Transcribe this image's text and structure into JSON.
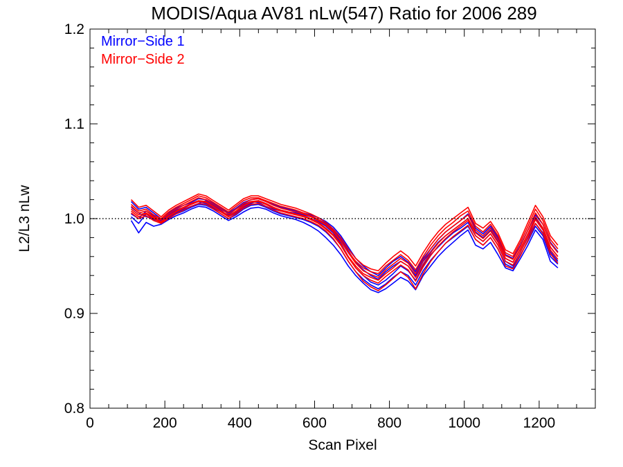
{
  "chart_data": {
    "type": "line",
    "title": "MODIS/Aqua AV81 nLw(547) Ratio for 2006 289",
    "xlabel": "Scan Pixel",
    "ylabel": "L2/L3 nLw",
    "xlim": [
      0,
      1350
    ],
    "ylim": [
      0.8,
      1.2
    ],
    "x_ticks": [
      0,
      200,
      400,
      600,
      800,
      1000,
      1200
    ],
    "x_tick_labels": [
      "0",
      "200",
      "400",
      "600",
      "800",
      "1000",
      "1200"
    ],
    "y_ticks": [
      0.8,
      0.9,
      1.0,
      1.1,
      1.2
    ],
    "y_tick_labels": [
      "0.8",
      "0.9",
      "1.0",
      "1.1",
      "1.2"
    ],
    "reference_line": {
      "y": 1.0,
      "style": "dotted",
      "color": "#000000"
    },
    "legend_position": "top-left",
    "grid": false,
    "x": [
      110,
      130,
      150,
      170,
      190,
      210,
      230,
      250,
      270,
      290,
      310,
      330,
      350,
      370,
      390,
      410,
      430,
      450,
      470,
      490,
      510,
      530,
      550,
      570,
      590,
      610,
      630,
      650,
      670,
      690,
      710,
      730,
      750,
      770,
      790,
      810,
      830,
      850,
      870,
      890,
      910,
      930,
      950,
      970,
      990,
      1010,
      1030,
      1050,
      1070,
      1090,
      1110,
      1130,
      1150,
      1170,
      1190,
      1210,
      1230,
      1250
    ],
    "series_groups": [
      {
        "name": "Mirror−Side 1",
        "color": "#0000ff",
        "series": [
          {
            "values": [
              1.005,
              1.0,
              1.008,
              1.003,
              0.998,
              1.004,
              1.009,
              1.012,
              1.015,
              1.018,
              1.016,
              1.011,
              1.007,
              1.004,
              1.01,
              1.015,
              1.018,
              1.017,
              1.013,
              1.01,
              1.008,
              1.006,
              1.004,
              1.003,
              1.0,
              0.997,
              0.992,
              0.985,
              0.974,
              0.96,
              0.948,
              0.94,
              0.933,
              0.93,
              0.935,
              0.942,
              0.95,
              0.945,
              0.935,
              0.95,
              0.962,
              0.97,
              0.978,
              0.985,
              0.99,
              0.996,
              0.982,
              0.976,
              0.984,
              0.972,
              0.955,
              0.95,
              0.965,
              0.98,
              0.995,
              0.985,
              0.965,
              0.955
            ]
          },
          {
            "values": [
              1.012,
              1.006,
              1.002,
              1.0,
              0.996,
              1.002,
              1.006,
              1.01,
              1.013,
              1.016,
              1.019,
              1.014,
              1.009,
              1.002,
              1.006,
              1.012,
              1.016,
              1.019,
              1.016,
              1.012,
              1.009,
              1.007,
              1.006,
              1.004,
              1.002,
              0.999,
              0.995,
              0.988,
              0.979,
              0.966,
              0.954,
              0.946,
              0.94,
              0.936,
              0.944,
              0.95,
              0.955,
              0.95,
              0.94,
              0.955,
              0.965,
              0.975,
              0.982,
              0.988,
              0.994,
              1.0,
              0.986,
              0.98,
              0.988,
              0.976,
              0.958,
              0.954,
              0.968,
              0.984,
              1.0,
              0.99,
              0.97,
              0.96
            ]
          },
          {
            "values": [
              0.998,
              0.985,
              0.996,
              0.992,
              0.994,
              0.999,
              1.003,
              1.006,
              1.01,
              1.013,
              1.012,
              1.008,
              1.003,
              0.998,
              1.002,
              1.007,
              1.011,
              1.012,
              1.01,
              1.006,
              1.003,
              1.001,
              0.999,
              0.996,
              0.992,
              0.987,
              0.98,
              0.972,
              0.962,
              0.95,
              0.94,
              0.932,
              0.925,
              0.922,
              0.926,
              0.932,
              0.938,
              0.934,
              0.925,
              0.94,
              0.95,
              0.96,
              0.968,
              0.975,
              0.982,
              0.988,
              0.972,
              0.968,
              0.975,
              0.962,
              0.948,
              0.945,
              0.958,
              0.972,
              0.988,
              0.978,
              0.955,
              0.948
            ]
          },
          {
            "values": [
              1.018,
              1.01,
              1.012,
              1.006,
              1.0,
              1.006,
              1.011,
              1.014,
              1.017,
              1.021,
              1.02,
              1.016,
              1.011,
              1.006,
              1.011,
              1.017,
              1.02,
              1.021,
              1.018,
              1.015,
              1.012,
              1.01,
              1.008,
              1.006,
              1.004,
              1.001,
              0.997,
              0.991,
              0.982,
              0.97,
              0.958,
              0.95,
              0.944,
              0.94,
              0.948,
              0.955,
              0.96,
              0.954,
              0.944,
              0.958,
              0.968,
              0.978,
              0.986,
              0.992,
              0.998,
              1.005,
              0.99,
              0.984,
              0.992,
              0.98,
              0.962,
              0.958,
              0.972,
              0.988,
              1.004,
              0.994,
              0.975,
              0.965
            ]
          },
          {
            "values": [
              1.002,
              0.995,
              1.005,
              0.999,
              0.997,
              1.001,
              1.005,
              1.008,
              1.012,
              1.015,
              1.014,
              1.01,
              1.005,
              1.0,
              1.004,
              1.01,
              1.014,
              1.015,
              1.012,
              1.008,
              1.005,
              1.003,
              1.001,
              0.999,
              0.996,
              0.992,
              0.986,
              0.978,
              0.968,
              0.955,
              0.944,
              0.936,
              0.93,
              0.926,
              0.931,
              0.938,
              0.944,
              0.94,
              0.93,
              0.945,
              0.956,
              0.965,
              0.974,
              0.98,
              0.986,
              0.992,
              0.978,
              0.972,
              0.98,
              0.968,
              0.952,
              0.948,
              0.962,
              0.976,
              0.992,
              0.982,
              0.96,
              0.952
            ]
          }
        ]
      },
      {
        "name": "Mirror−Side 2",
        "color": "#ff0000",
        "series": [
          {
            "values": [
              1.015,
              1.008,
              1.01,
              1.004,
              1.0,
              1.007,
              1.012,
              1.016,
              1.02,
              1.024,
              1.022,
              1.017,
              1.012,
              1.007,
              1.013,
              1.019,
              1.022,
              1.022,
              1.019,
              1.016,
              1.013,
              1.011,
              1.009,
              1.006,
              1.003,
              0.999,
              0.994,
              0.987,
              0.977,
              0.965,
              0.955,
              0.948,
              0.944,
              0.942,
              0.95,
              0.956,
              0.962,
              0.956,
              0.946,
              0.96,
              0.972,
              0.982,
              0.99,
              0.996,
              1.003,
              1.008,
              0.992,
              0.986,
              0.994,
              0.982,
              0.964,
              0.96,
              0.975,
              0.992,
              1.01,
              0.998,
              0.978,
              0.968
            ]
          },
          {
            "values": [
              1.01,
              1.004,
              1.006,
              1.001,
              0.997,
              1.003,
              1.008,
              1.012,
              1.016,
              1.019,
              1.018,
              1.013,
              1.008,
              1.003,
              1.008,
              1.014,
              1.018,
              1.019,
              1.016,
              1.012,
              1.009,
              1.007,
              1.005,
              1.003,
              1.0,
              0.996,
              0.99,
              0.983,
              0.973,
              0.96,
              0.95,
              0.942,
              0.938,
              0.935,
              0.942,
              0.948,
              0.955,
              0.95,
              0.938,
              0.952,
              0.964,
              0.974,
              0.982,
              0.988,
              0.994,
              1.0,
              0.985,
              0.979,
              0.987,
              0.975,
              0.958,
              0.954,
              0.968,
              0.984,
              1.002,
              0.99,
              0.97,
              0.96
            ]
          },
          {
            "values": [
              1.02,
              1.012,
              1.014,
              1.008,
              1.002,
              1.009,
              1.014,
              1.018,
              1.022,
              1.026,
              1.024,
              1.019,
              1.014,
              1.009,
              1.015,
              1.021,
              1.024,
              1.024,
              1.021,
              1.018,
              1.015,
              1.013,
              1.011,
              1.008,
              1.005,
              1.001,
              0.996,
              0.989,
              0.98,
              0.968,
              0.958,
              0.951,
              0.947,
              0.945,
              0.953,
              0.96,
              0.966,
              0.96,
              0.95,
              0.964,
              0.976,
              0.986,
              0.994,
              1.0,
              1.006,
              1.012,
              0.995,
              0.99,
              0.997,
              0.985,
              0.967,
              0.963,
              0.978,
              0.996,
              1.014,
              1.002,
              0.982,
              0.972
            ]
          },
          {
            "values": [
              1.006,
              1.0,
              1.003,
              0.998,
              0.995,
              1.0,
              1.005,
              1.009,
              1.013,
              1.016,
              1.015,
              1.01,
              1.005,
              1.0,
              1.005,
              1.011,
              1.015,
              1.016,
              1.013,
              1.009,
              1.006,
              1.004,
              1.002,
              1.0,
              0.997,
              0.993,
              0.987,
              0.979,
              0.968,
              0.955,
              0.944,
              0.934,
              0.928,
              0.924,
              0.93,
              0.937,
              0.944,
              0.938,
              0.926,
              0.942,
              0.955,
              0.965,
              0.974,
              0.981,
              0.987,
              0.993,
              0.978,
              0.972,
              0.98,
              0.968,
              0.95,
              0.947,
              0.961,
              0.977,
              0.995,
              0.984,
              0.963,
              0.953
            ]
          },
          {
            "values": [
              1.013,
              1.006,
              1.008,
              1.002,
              0.999,
              1.005,
              1.01,
              1.014,
              1.018,
              1.022,
              1.02,
              1.015,
              1.01,
              1.005,
              1.01,
              1.016,
              1.02,
              1.021,
              1.018,
              1.014,
              1.011,
              1.009,
              1.007,
              1.005,
              1.002,
              0.998,
              0.993,
              0.986,
              0.976,
              0.964,
              0.953,
              0.945,
              0.941,
              0.938,
              0.946,
              0.952,
              0.958,
              0.953,
              0.942,
              0.956,
              0.968,
              0.978,
              0.986,
              0.992,
              0.998,
              1.004,
              0.988,
              0.982,
              0.99,
              0.978,
              0.961,
              0.957,
              0.971,
              0.988,
              1.006,
              0.994,
              0.974,
              0.964
            ]
          },
          {
            "values": [
              1.008,
              1.002,
              1.005,
              1.0,
              0.996,
              1.002,
              1.007,
              1.011,
              1.015,
              1.018,
              1.017,
              1.012,
              1.007,
              1.002,
              1.007,
              1.013,
              1.017,
              1.018,
              1.015,
              1.011,
              1.008,
              1.006,
              1.004,
              1.002,
              0.999,
              0.995,
              0.989,
              0.982,
              0.972,
              0.959,
              0.948,
              0.94,
              0.935,
              0.932,
              0.939,
              0.945,
              0.951,
              0.946,
              0.934,
              0.949,
              0.961,
              0.971,
              0.979,
              0.986,
              0.992,
              0.998,
              0.982,
              0.976,
              0.984,
              0.972,
              0.955,
              0.951,
              0.965,
              0.981,
              0.999,
              0.988,
              0.967,
              0.957
            ]
          }
        ]
      }
    ]
  }
}
